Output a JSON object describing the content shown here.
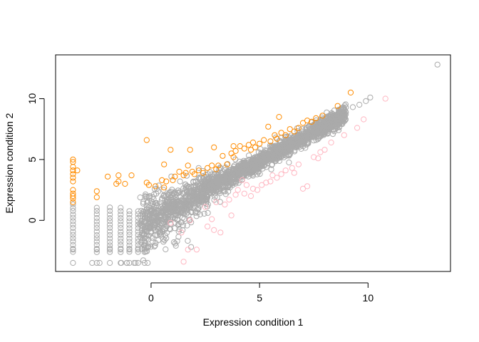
{
  "chart_data": {
    "type": "scatter",
    "title": "",
    "xlabel": "Expression condition 1",
    "ylabel": "Expression condition 2",
    "xlim": [
      -4.4,
      13.8
    ],
    "ylim": [
      -4.2,
      13.6
    ],
    "x_ticks": [
      0,
      5,
      10
    ],
    "y_ticks": [
      0,
      5,
      10
    ],
    "x_tick_labels": [
      "0",
      "5",
      "10"
    ],
    "y_tick_labels": [
      "0",
      "5",
      "10"
    ],
    "grid": false,
    "legend": "none",
    "marker": "open-circle",
    "colors": {
      "neutral": "#aaaaaa",
      "up": "#ff8c00",
      "down": "#ffb6c1"
    },
    "series": [
      {
        "color": "#ff8c00",
        "points": [
          [
            -3.6,
            5.0
          ],
          [
            -3.6,
            4.8
          ],
          [
            -3.6,
            4.4
          ],
          [
            -3.6,
            4.1
          ],
          [
            -3.4,
            4.1
          ],
          [
            -3.6,
            3.8
          ],
          [
            -3.6,
            3.5
          ],
          [
            -3.6,
            3.2
          ],
          [
            -3.6,
            2.5
          ],
          [
            -3.6,
            2.2
          ],
          [
            -3.6,
            2.0
          ],
          [
            -3.6,
            1.8
          ],
          [
            -3.6,
            1.5
          ],
          [
            -2.5,
            2.4
          ],
          [
            -2.5,
            1.9
          ],
          [
            -2.0,
            3.6
          ],
          [
            -1.5,
            3.7
          ],
          [
            -1.5,
            3.2
          ],
          [
            -1.6,
            3.0
          ],
          [
            -0.9,
            3.7
          ],
          [
            -1.2,
            3.0
          ],
          [
            -0.2,
            6.6
          ],
          [
            -0.2,
            3.1
          ],
          [
            -0.1,
            2.9
          ],
          [
            0.2,
            2.8
          ],
          [
            0.5,
            3.3
          ],
          [
            0.7,
            3.2
          ],
          [
            0.6,
            2.7
          ],
          [
            0.9,
            5.8
          ],
          [
            0.6,
            4.6
          ],
          [
            1.0,
            3.3
          ],
          [
            1.1,
            3.6
          ],
          [
            1.3,
            4.0
          ],
          [
            1.5,
            3.7
          ],
          [
            1.6,
            3.9
          ],
          [
            1.7,
            4.5
          ],
          [
            1.8,
            5.8
          ],
          [
            1.9,
            4.0
          ],
          [
            2.0,
            3.8
          ],
          [
            2.2,
            4.1
          ],
          [
            2.4,
            3.9
          ],
          [
            2.6,
            4.3
          ],
          [
            2.8,
            4.5
          ],
          [
            2.9,
            6.0
          ],
          [
            3.0,
            4.2
          ],
          [
            3.1,
            4.5
          ],
          [
            3.3,
            5.3
          ],
          [
            3.5,
            4.6
          ],
          [
            3.7,
            5.5
          ],
          [
            3.8,
            5.2
          ],
          [
            3.9,
            5.7
          ],
          [
            4.1,
            6.1
          ],
          [
            4.3,
            5.9
          ],
          [
            4.5,
            6.2
          ],
          [
            4.6,
            5.8
          ],
          [
            4.7,
            6.4
          ],
          [
            4.8,
            6.0
          ],
          [
            5.0,
            6.3
          ],
          [
            5.2,
            6.6
          ],
          [
            5.5,
            6.5
          ],
          [
            5.7,
            7.0
          ],
          [
            5.8,
            6.7
          ],
          [
            6.0,
            7.2
          ],
          [
            6.2,
            7.0
          ],
          [
            6.4,
            7.5
          ],
          [
            6.6,
            7.3
          ],
          [
            6.8,
            7.6
          ],
          [
            7.0,
            8.0
          ],
          [
            7.2,
            8.2
          ],
          [
            7.4,
            8.1
          ],
          [
            7.6,
            8.4
          ],
          [
            5.9,
            8.5
          ],
          [
            5.4,
            7.7
          ],
          [
            7.9,
            8.6
          ],
          [
            8.6,
            9.4
          ],
          [
            9.2,
            10.5
          ],
          [
            3.8,
            6.1
          ]
        ]
      },
      {
        "color": "#ffb6c1",
        "points": [
          [
            1.4,
            -1.0
          ],
          [
            1.7,
            -2.4
          ],
          [
            2.1,
            -2.4
          ],
          [
            2.6,
            -0.5
          ],
          [
            2.9,
            -0.8
          ],
          [
            3.2,
            -1.0
          ],
          [
            2.8,
            0.1
          ],
          [
            3.4,
            1.3
          ],
          [
            3.6,
            1.7
          ],
          [
            3.7,
            0.4
          ],
          [
            4.0,
            2.5
          ],
          [
            4.3,
            2.2
          ],
          [
            4.6,
            2.0
          ],
          [
            4.7,
            2.6
          ],
          [
            4.9,
            2.5
          ],
          [
            5.1,
            2.9
          ],
          [
            5.3,
            3.1
          ],
          [
            5.6,
            3.7
          ],
          [
            5.8,
            3.5
          ],
          [
            6.0,
            3.8
          ],
          [
            6.2,
            4.1
          ],
          [
            6.5,
            4.3
          ],
          [
            6.8,
            4.6
          ],
          [
            7.0,
            2.6
          ],
          [
            7.2,
            2.8
          ],
          [
            7.5,
            5.2
          ],
          [
            7.8,
            5.6
          ],
          [
            8.0,
            5.8
          ],
          [
            8.3,
            6.4
          ],
          [
            9.5,
            7.6
          ],
          [
            10.8,
            10.0
          ],
          [
            9.8,
            8.3
          ],
          [
            1.8,
            0.0
          ],
          [
            3.0,
            1.5
          ],
          [
            4.4,
            2.9
          ],
          [
            6.6,
            3.9
          ],
          [
            3.9,
            2.1
          ],
          [
            2.5,
            1.1
          ],
          [
            1.5,
            -3.4
          ],
          [
            0.9,
            -0.2
          ],
          [
            5.5,
            3.2
          ],
          [
            7.7,
            5.1
          ],
          [
            8.9,
            7.0
          ],
          [
            4.2,
            3.3
          ]
        ]
      }
    ],
    "neutral_pattern": {
      "spine_x_range": [
        -0.5,
        9.0
      ],
      "spine_point_count": 2200,
      "outliers": [
        [
          13.2,
          12.8
        ],
        [
          10.1,
          10.1
        ],
        [
          9.6,
          9.5
        ],
        [
          9.9,
          9.8
        ],
        [
          8.8,
          8.9
        ],
        [
          9.3,
          9.3
        ]
      ],
      "floor_levels": [
        -2.4,
        -3.5
      ]
    }
  }
}
